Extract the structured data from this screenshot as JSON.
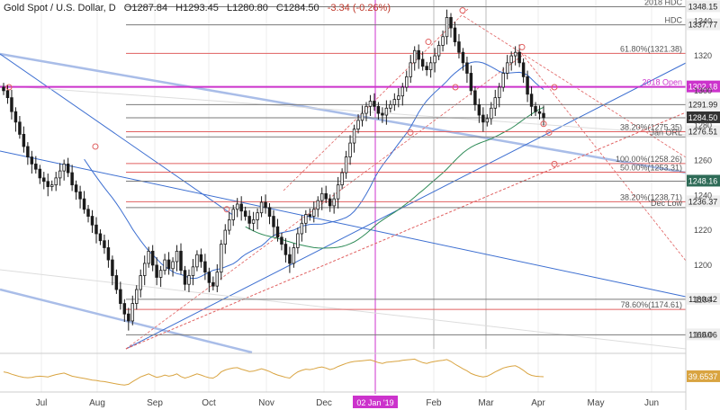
{
  "header": {
    "symbol": "Gold Spot / U.S. Dollar, D",
    "open": "O1287.84",
    "high": "H1293.45",
    "low": "L1280.80",
    "close": "C1284.50",
    "change": "-3.34 (-0.26%)"
  },
  "colors": {
    "candle": "#1a1a1a",
    "magenta": "#cc33cc",
    "trend_blue": "#a9bde8",
    "ma_blue": "#3d6fd1",
    "ma_green": "#2e8b57",
    "fib_red": "#e06060",
    "level_gray": "#7a7a7a",
    "rsi_orange": "#d9a441"
  },
  "chart_data": {
    "type": "candlestick",
    "title": "Gold Spot / U.S. Dollar, D",
    "ylim": [
      1152,
      1352
    ],
    "x_ticks": [
      "Jul",
      "Aug",
      "Sep",
      "Oct",
      "Nov",
      "Dec",
      "Feb",
      "Mar",
      "Apr",
      "May",
      "Jun"
    ],
    "x_marker_label": "02 Jan '19",
    "price_ticks": [
      1340,
      1320,
      1300,
      1280,
      1260,
      1240,
      1220,
      1200,
      1180,
      1160
    ],
    "level_labels": [
      {
        "label": "2018 HDC",
        "price": "1348.15",
        "value": 1348.15
      },
      {
        "label": "HDC",
        "price": "1337.77",
        "value": 1337.77
      },
      {
        "label": "61.80%(1321.38)",
        "price": "",
        "value": 1321.38
      },
      {
        "label": "2018 Open",
        "price": "1302.18",
        "value": 1302.18
      },
      {
        "label": "",
        "price": "1291.99",
        "value": 1291.99
      },
      {
        "label": "",
        "price": "1284.50",
        "value": 1284.5
      },
      {
        "label": "38.20%(1275.35)",
        "price": "1276.51",
        "value": 1276.51
      },
      {
        "label": "Jan ORL",
        "price": "",
        "value": 1273.5
      },
      {
        "label": "100.00%(1258.26)",
        "price": "",
        "value": 1258.26
      },
      {
        "label": "50.00%(1253.31)",
        "price": "",
        "value": 1253.31
      },
      {
        "label": "",
        "price": "1248.16",
        "value": 1248.16
      },
      {
        "label": "38.20%(1238.71)",
        "price": "1236.37",
        "value": 1236.37
      },
      {
        "label": "Dec Low",
        "price": "",
        "value": 1233
      },
      {
        "label": "",
        "price": "1180.42",
        "value": 1180.42
      },
      {
        "label": "78.60%(1174.61)",
        "price": "",
        "value": 1174.61
      },
      {
        "label": "",
        "price": "1160.06",
        "value": 1160.06
      }
    ],
    "rsi_value": "39.6537",
    "closes": [
      1300,
      1296,
      1288,
      1282,
      1275,
      1268,
      1262,
      1258,
      1255,
      1250,
      1248,
      1245,
      1246,
      1250,
      1254,
      1258,
      1253,
      1246,
      1242,
      1238,
      1232,
      1228,
      1223,
      1218,
      1214,
      1210,
      1203,
      1194,
      1186,
      1178,
      1172,
      1168,
      1178,
      1186,
      1194,
      1201,
      1208,
      1200,
      1193,
      1197,
      1203,
      1198,
      1202,
      1208,
      1197,
      1189,
      1194,
      1199,
      1206,
      1202,
      1196,
      1190,
      1188,
      1196,
      1212,
      1220,
      1226,
      1232,
      1235,
      1231,
      1228,
      1224,
      1226,
      1230,
      1236,
      1233,
      1228,
      1222,
      1216,
      1212,
      1206,
      1201,
      1210,
      1218,
      1224,
      1229,
      1228,
      1232,
      1237,
      1241,
      1238,
      1234,
      1238,
      1246,
      1253,
      1262,
      1270,
      1278,
      1283,
      1287,
      1291,
      1294,
      1291,
      1287,
      1286,
      1290,
      1292,
      1295,
      1297,
      1302,
      1308,
      1316,
      1323,
      1318,
      1314,
      1312,
      1316,
      1320,
      1326,
      1331,
      1342,
      1336,
      1328,
      1322,
      1316,
      1310,
      1300,
      1292,
      1286,
      1282,
      1284,
      1290,
      1296,
      1302,
      1310,
      1316,
      1320,
      1322,
      1316,
      1308,
      1298,
      1291,
      1288,
      1287,
      1284.5
    ],
    "rsi": [
      52,
      50,
      46,
      43,
      40,
      38,
      37,
      38,
      40,
      41,
      40,
      39,
      42,
      45,
      47,
      49,
      45,
      41,
      39,
      37,
      35,
      33,
      31,
      30,
      28,
      27,
      25,
      23,
      21,
      19,
      18,
      20,
      27,
      33,
      39,
      43,
      47,
      42,
      38,
      40,
      44,
      41,
      43,
      47,
      40,
      36,
      39,
      43,
      47,
      44,
      40,
      37,
      36,
      42,
      52,
      57,
      60,
      62,
      63,
      59,
      56,
      53,
      54,
      57,
      60,
      57,
      53,
      48,
      44,
      41,
      38,
      36,
      45,
      52,
      56,
      59,
      58,
      60,
      63,
      65,
      62,
      58,
      61,
      66,
      70,
      74,
      77,
      79,
      80,
      81,
      82,
      83,
      80,
      76,
      74,
      77,
      78,
      79,
      80,
      82,
      83,
      84,
      85,
      80,
      76,
      74,
      77,
      79,
      81,
      82,
      84,
      79,
      72,
      66,
      60,
      55,
      48,
      44,
      41,
      39,
      41,
      46,
      52,
      57,
      62,
      65,
      67,
      68,
      63,
      56,
      48,
      43,
      41,
      40,
      39.65
    ]
  }
}
